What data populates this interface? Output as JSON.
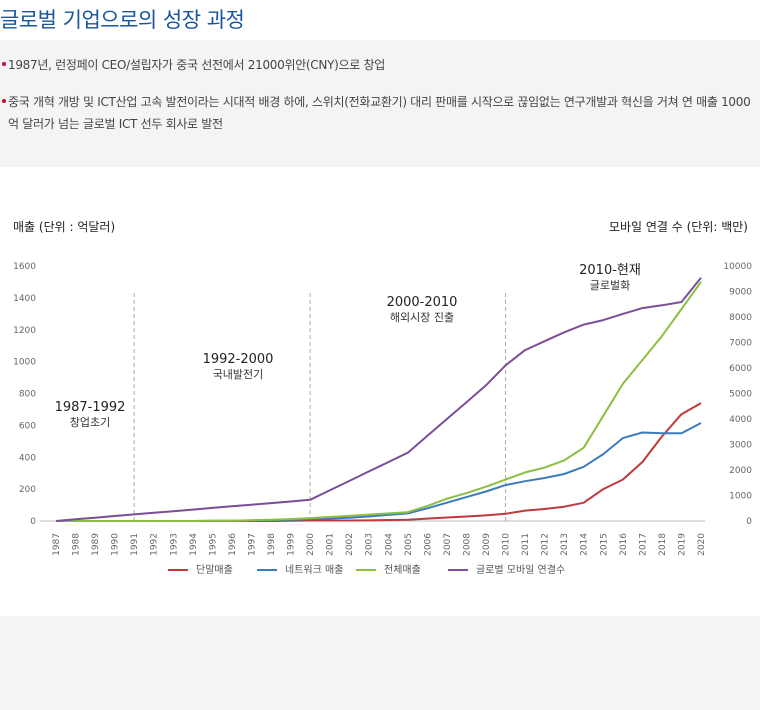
{
  "title": "글로벌 기업으로의 성장 과정",
  "bullets": [
    "1987년, 런정페이 CEO/설립자가 중국 선전에서 21000위안(CNY)으로 창업",
    "중국 개혁 개방 및 ICT산업 고속 발전이라는 시대적 배경 하에, 스위치(전화교환기) 대리 판매를 시작으로 끊임없는 연구개발과 혁신을 거쳐 연 매출 1000억 달러가 넘는 글로벌 ICT 선두 회사로 발전"
  ],
  "colors": {
    "terminal": "#c0393b",
    "network": "#3d7bbf",
    "total": "#8cbf3f",
    "mobile": "#7b4e9a",
    "title": "#1a56a0"
  },
  "chart_data": {
    "type": "line",
    "ylabel_left": "매출 (단위 : 억달러)",
    "ylabel_right": "모바일 연결 수 (단위: 백만)",
    "ylim_left": [
      0,
      1600
    ],
    "ylim_right": [
      0,
      10000
    ],
    "yticks_left": [
      "0",
      "200",
      "400",
      "600",
      "800",
      "1000",
      "1200",
      "1400",
      "1600"
    ],
    "yticks_right": [
      "0",
      "1000",
      "2000",
      "3000",
      "4000",
      "5000",
      "6000",
      "7000",
      "8000",
      "9000",
      "10000"
    ],
    "x": [
      "1987",
      "1988",
      "1989",
      "1990",
      "1991",
      "1992",
      "1993",
      "1994",
      "1995",
      "1996",
      "1997",
      "1998",
      "1999",
      "2000",
      "2001",
      "2002",
      "2003",
      "2004",
      "2005",
      "2006",
      "2007",
      "2008",
      "2009",
      "2010",
      "2011",
      "2012",
      "2013",
      "2014",
      "2015",
      "2016",
      "2017",
      "2018",
      "2019",
      "2020"
    ],
    "series": [
      {
        "name": "단말매출",
        "axis": "left",
        "color": "#c0393b",
        "values": [
          0,
          0,
          0,
          0,
          0,
          0,
          0,
          0,
          0,
          0,
          0,
          0,
          2,
          3,
          3,
          3,
          4,
          6,
          8,
          15,
          22,
          28,
          35,
          45,
          65,
          75,
          90,
          115,
          200,
          260,
          370,
          530,
          670,
          740
        ]
      },
      {
        "name": "네트워크 매출",
        "axis": "left",
        "color": "#3d7bbf",
        "values": [
          0,
          0,
          0,
          0,
          0,
          0,
          0,
          0,
          1,
          2,
          4,
          6,
          8,
          12,
          16,
          20,
          28,
          38,
          48,
          80,
          115,
          150,
          185,
          225,
          250,
          270,
          295,
          340,
          420,
          520,
          555,
          550,
          550,
          615
        ]
      },
      {
        "name": "전체매출",
        "axis": "left",
        "color": "#8cbf3f",
        "values": [
          0,
          0,
          0,
          0,
          0,
          0,
          0,
          0,
          1,
          2,
          5,
          8,
          12,
          18,
          25,
          32,
          40,
          48,
          55,
          95,
          140,
          175,
          215,
          260,
          305,
          335,
          380,
          460,
          660,
          860,
          1010,
          1160,
          1330,
          1500
        ]
      },
      {
        "name": "글로벌 모바일 연결수",
        "axis": "right",
        "color": "#7b4e9a",
        "values": [
          0,
          65,
          130,
          195,
          260,
          323,
          386,
          449,
          512,
          575,
          638,
          701,
          764,
          830,
          1200,
          1570,
          1940,
          2310,
          2680,
          3340,
          4000,
          4660,
          5320,
          6100,
          6700,
          7050,
          7400,
          7700,
          7880,
          8120,
          8350,
          8460,
          8590,
          9540
        ]
      }
    ],
    "eras": [
      {
        "range": "1987-1992",
        "label": "창업초기"
      },
      {
        "range": "1992-2000",
        "label": "국내발전기"
      },
      {
        "range": "2000-2010",
        "label": "해외시장 진출"
      },
      {
        "range": "2010-현재",
        "label": "글로벌화"
      }
    ],
    "dividers": [
      "1991",
      "2000",
      "2010"
    ]
  }
}
